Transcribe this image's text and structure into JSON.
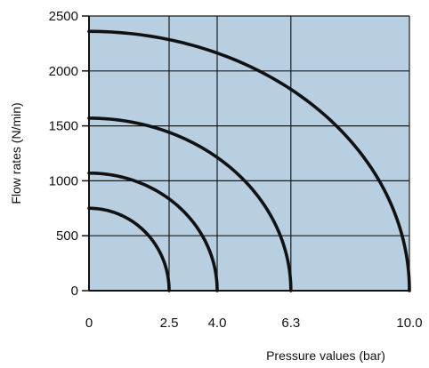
{
  "chart_data": {
    "type": "line",
    "title": "",
    "xlabel": "Pressure values (bar)",
    "ylabel": "Flow rates (N/min)",
    "xlim": [
      0,
      10
    ],
    "ylim": [
      0,
      2500
    ],
    "x_ticks": [
      0,
      2.5,
      4.0,
      6.3,
      10.0
    ],
    "x_tick_labels": [
      "0",
      "2.5",
      "4.0",
      "6.3",
      "10.0"
    ],
    "y_ticks": [
      0,
      500,
      1000,
      1500,
      2000,
      2500
    ],
    "y_tick_labels": [
      "0",
      "500",
      "1000",
      "1500",
      "2000",
      "2500"
    ],
    "grid": true,
    "plot_background": "#b7cfe0",
    "line_color": "#111111",
    "series": [
      {
        "x_max": 2.5,
        "y_max": 750
      },
      {
        "x_max": 4.0,
        "y_max": 1070
      },
      {
        "x_max": 6.3,
        "y_max": 1570
      },
      {
        "x_max": 10.0,
        "y_max": 2360
      }
    ]
  }
}
